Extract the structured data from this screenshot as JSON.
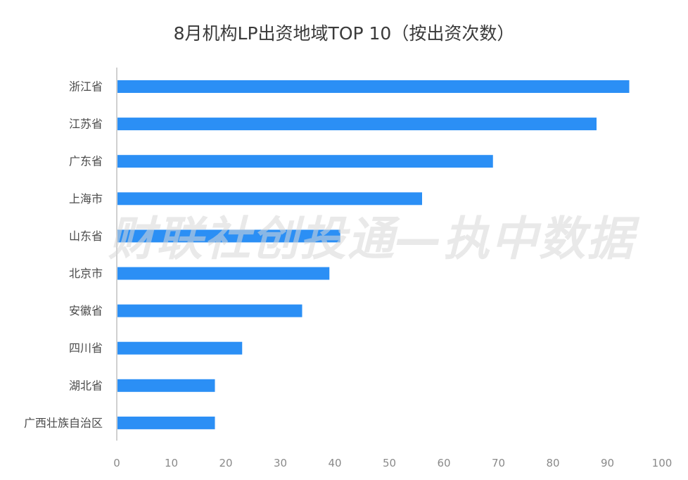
{
  "chart_data": {
    "type": "bar",
    "orientation": "horizontal",
    "title": "8月机构LP出资地域TOP 10（按出资次数）",
    "categories": [
      "浙江省",
      "江苏省",
      "广东省",
      "上海市",
      "山东省",
      "北京市",
      "安徽省",
      "四川省",
      "湖北省",
      "广西壮族自治区"
    ],
    "values": [
      94,
      88,
      69,
      56,
      41,
      39,
      34,
      23,
      18,
      18
    ],
    "xlim": [
      0,
      100
    ],
    "x_ticks": [
      0,
      10,
      20,
      30,
      40,
      50,
      60,
      70,
      80,
      90,
      100
    ],
    "grid": false,
    "bar_color": "#2b8ff5",
    "axis_color": "#d0d0d0"
  },
  "watermark": "财联社创投通—执中数据"
}
